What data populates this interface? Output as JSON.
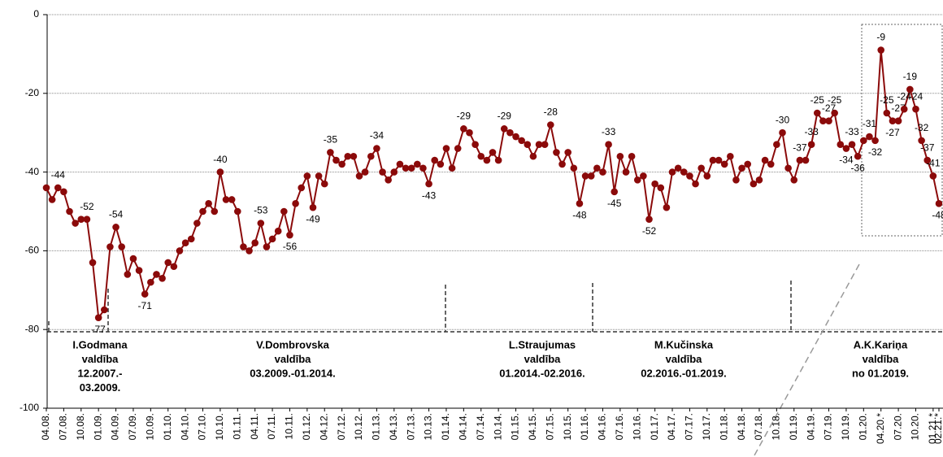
{
  "chart_data": {
    "type": "line",
    "categories": [
      "04.08.",
      null,
      null,
      "07.08.",
      null,
      null,
      "10.08.",
      null,
      null,
      "01.09.",
      null,
      null,
      "04.09.",
      null,
      null,
      "07.09.",
      null,
      null,
      "10.09.",
      null,
      null,
      "01.10.",
      null,
      null,
      "04.10.",
      null,
      null,
      "07.10.",
      null,
      null,
      "10.10.",
      null,
      null,
      "01.11.",
      null,
      null,
      "04.11.",
      null,
      null,
      "07.11.",
      null,
      null,
      "10.11.",
      null,
      null,
      "01.12.",
      null,
      null,
      "04.12.",
      null,
      null,
      "07.12.",
      null,
      null,
      "10.12.",
      null,
      null,
      "01.13.",
      null,
      null,
      "04.13.",
      null,
      null,
      "07.13.",
      null,
      null,
      "10.13.",
      null,
      null,
      "01.14.",
      null,
      null,
      "04.14.",
      null,
      null,
      "07.14.",
      null,
      null,
      "10.14.",
      null,
      null,
      "01.15.",
      null,
      null,
      "04.15.",
      null,
      null,
      "07.15.",
      null,
      null,
      "10.15.",
      null,
      null,
      "01.16.",
      null,
      null,
      "04.16.",
      null,
      null,
      "07.16.",
      null,
      null,
      "10.16.",
      null,
      null,
      "01.17.",
      null,
      null,
      "04.17.",
      null,
      null,
      "07.17.",
      null,
      null,
      "10.17.",
      null,
      null,
      "01.18.",
      null,
      null,
      "04.18.",
      null,
      null,
      "07.18.",
      null,
      null,
      "10.18.",
      null,
      null,
      "01.19.",
      null,
      null,
      "04.19.",
      null,
      null,
      "07.19.",
      null,
      null,
      "10.19.",
      null,
      null,
      "01.20.",
      null,
      null,
      "04.20.*",
      null,
      null,
      "07.20.",
      null,
      null,
      "10.20.",
      null,
      null,
      "01.21.*",
      "02.21.*"
    ],
    "series": [
      {
        "color": "#8b0a0a",
        "values": [
          -44,
          -47,
          -44,
          -45,
          -50,
          -53,
          -52,
          -52,
          -63,
          -77,
          -75,
          -59,
          -54,
          -59,
          -66,
          -62,
          -65,
          -71,
          -68,
          -66,
          -67,
          -63,
          -64,
          -60,
          -58,
          -57,
          -53,
          -50,
          -48,
          -50,
          -40,
          -47,
          -47,
          -50,
          -59,
          -60,
          -58,
          -53,
          -59,
          -57,
          -55,
          -50,
          -56,
          -48,
          -44,
          -41,
          -49,
          -41,
          -43,
          -35,
          -37,
          -38,
          -36,
          -36,
          -41,
          -40,
          -36,
          -34,
          -40,
          -42,
          -40,
          -38,
          -39,
          -39,
          -38,
          -39,
          -43,
          -37,
          -38,
          -34,
          -39,
          -34,
          -29,
          -30,
          -33,
          -36,
          -37,
          -35,
          -37,
          -29,
          -30,
          -31,
          -32,
          -33,
          -36,
          -33,
          -33,
          -28,
          -35,
          -38,
          -35,
          -39,
          -48,
          -41,
          -41,
          -39,
          -40,
          -33,
          -45,
          -36,
          -40,
          -36,
          -42,
          -41,
          -52,
          -43,
          -44,
          -49,
          -40,
          -39,
          -40,
          -41,
          -43,
          -39,
          -41,
          -37,
          -37,
          -38,
          -36,
          -42,
          -39,
          -38,
          -43,
          -42,
          -37,
          -38,
          -33,
          -30,
          -39,
          -42,
          -37,
          -37,
          -33,
          -25,
          -27,
          -27,
          -25,
          -33,
          -34,
          -33,
          -36,
          -32,
          -31,
          -32,
          -9,
          -25,
          -27,
          -27,
          -24,
          -19,
          -24,
          -32,
          -37,
          -41,
          -48
        ],
        "value_labels": [
          null,
          null,
          "-44",
          null,
          null,
          null,
          null,
          "-52",
          null,
          "-77",
          null,
          null,
          "-54",
          null,
          null,
          null,
          null,
          "-71",
          null,
          null,
          null,
          null,
          null,
          null,
          null,
          null,
          null,
          null,
          null,
          null,
          "-40",
          null,
          null,
          null,
          null,
          null,
          null,
          "-53",
          null,
          null,
          null,
          null,
          "-56",
          null,
          null,
          null,
          "-49",
          null,
          null,
          "-35",
          null,
          null,
          null,
          null,
          null,
          null,
          null,
          "-34",
          null,
          null,
          null,
          null,
          null,
          null,
          null,
          null,
          "-43",
          null,
          null,
          null,
          null,
          null,
          "-29",
          null,
          null,
          null,
          null,
          null,
          null,
          "-29",
          null,
          null,
          null,
          null,
          null,
          null,
          null,
          "-28",
          null,
          null,
          null,
          null,
          "-48",
          null,
          null,
          null,
          null,
          "-33",
          "-45",
          null,
          null,
          null,
          null,
          null,
          "-52",
          null,
          null,
          null,
          null,
          null,
          null,
          null,
          null,
          null,
          null,
          null,
          null,
          null,
          null,
          null,
          null,
          null,
          null,
          null,
          null,
          null,
          null,
          "-30",
          null,
          null,
          "-37",
          null,
          "-33",
          "-25",
          null,
          "-27",
          "-25",
          null,
          "-34",
          "-33",
          "-36",
          null,
          "-31",
          "-32",
          "-9",
          "-25",
          "-27",
          "-27",
          "-24",
          "-19",
          "-24",
          "-32",
          "-37",
          "-41",
          "-48"
        ]
      }
    ],
    "ylim": [
      -100,
      0
    ],
    "yticks": [
      0,
      -20,
      -40,
      -60,
      -80,
      -100
    ],
    "grid": true,
    "annotations": [
      {
        "lines": [
          "I.Godmana",
          "valdība",
          "12.2007.-",
          "03.2009."
        ]
      },
      {
        "lines": [
          "V.Dombrovska",
          "valdība",
          "03.2009.-01.2014."
        ]
      },
      {
        "lines": [
          "L.Straujumas",
          "valdība",
          "01.2014.-02.2016."
        ]
      },
      {
        "lines": [
          "M.Kučinska",
          "valdība",
          "02.2016.-01.2019."
        ]
      },
      {
        "lines": [
          "A.K.Kariņa",
          "valdība",
          "no 01.2019."
        ]
      }
    ]
  }
}
